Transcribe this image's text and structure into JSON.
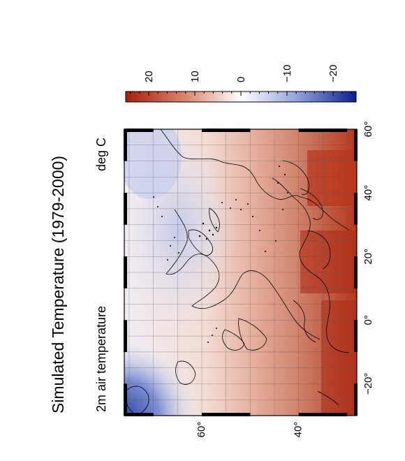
{
  "title": "Simulated Temperature (1979-2000)",
  "variable_label": "2m air temperature",
  "units_label": "deg C",
  "colorbar": {
    "ticks": [
      "20",
      "10",
      "0",
      "−10",
      "−20"
    ],
    "range": [
      25,
      -25
    ],
    "colors": {
      "warm": "#b2220f",
      "neutral": "#ffffff",
      "cold": "#0a1f8c"
    }
  },
  "map": {
    "lon_ticks": [
      "60°",
      "40°",
      "20°",
      "0°",
      "−20°"
    ],
    "lat_ticks": [
      "60°",
      "40°"
    ],
    "lon_range": [
      -30,
      60
    ],
    "lat_range": [
      28,
      76
    ],
    "grid": true,
    "coastlines": true
  }
}
